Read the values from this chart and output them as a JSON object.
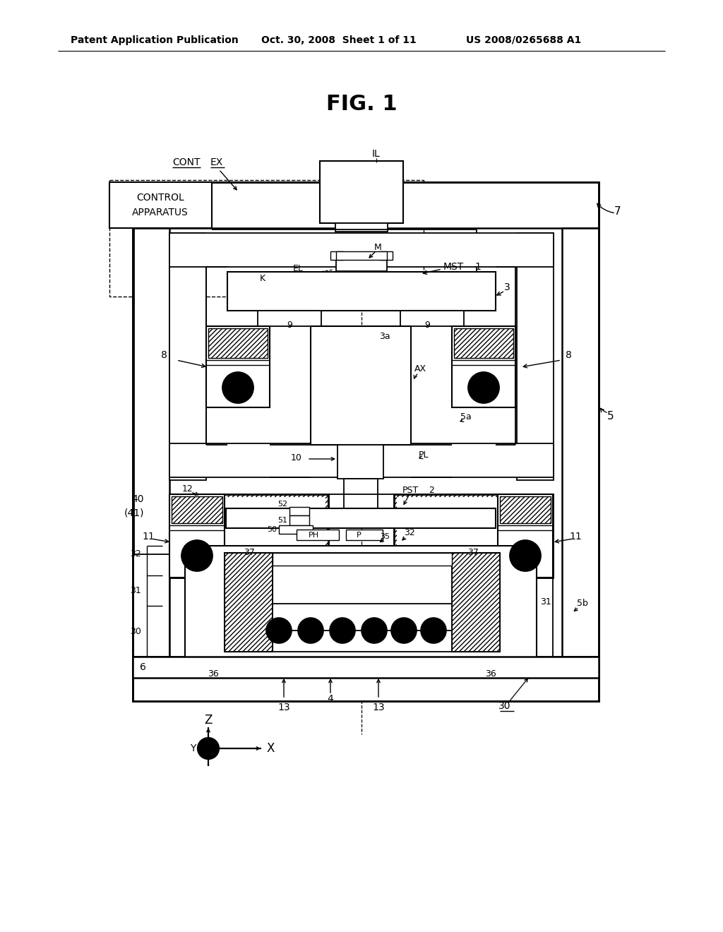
{
  "bg_color": "#ffffff",
  "fig_title": "FIG. 1",
  "header_left": "Patent Application Publication",
  "header_mid": "Oct. 30, 2008  Sheet 1 of 11",
  "header_right": "US 2008/0265688 A1"
}
